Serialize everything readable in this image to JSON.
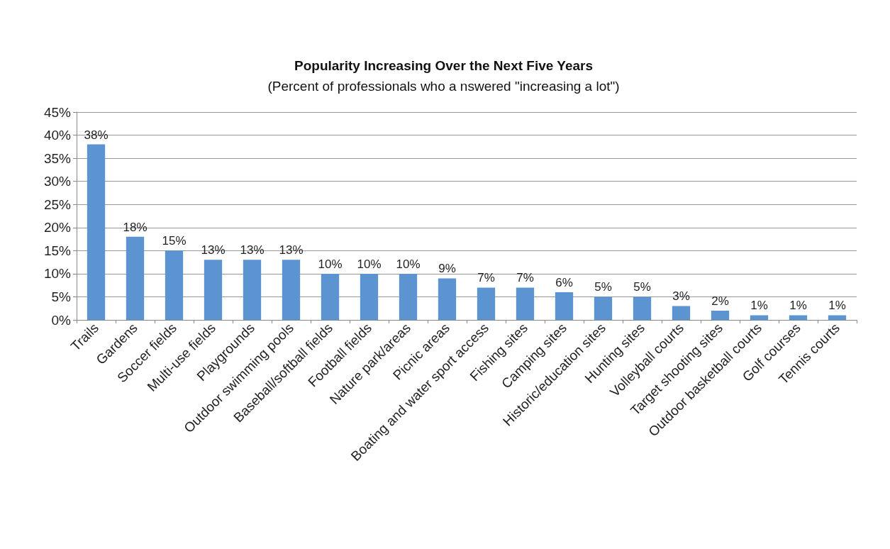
{
  "chart_data": {
    "type": "bar",
    "title": "Popularity Increasing Over the Next Five Years",
    "subtitle": "(Percent of professionals who a nswered \"increasing a lot\")",
    "categories": [
      "Trails",
      "Gardens",
      "Soccer fields",
      "Multi-use fields",
      "Playgrounds",
      "Outdoor swimming pools",
      "Baseball/softball fields",
      "Football fields",
      "Nature park/areas",
      "Picnic areas",
      "Boating and water sport access",
      "Fishing sites",
      "Camping sites",
      "Historic/education sites",
      "Hunting sites",
      "Volleyball courts",
      "Target shooting sites",
      "Outdoor basketball courts",
      "Golf courses",
      "Tennis courts"
    ],
    "values": [
      38,
      18,
      15,
      13,
      13,
      13,
      10,
      10,
      10,
      9,
      7,
      7,
      6,
      5,
      5,
      3,
      2,
      1,
      1,
      1
    ],
    "value_labels": [
      "38%",
      "18%",
      "15%",
      "13%",
      "13%",
      "13%",
      "10%",
      "10%",
      "10%",
      "9%",
      "7%",
      "7%",
      "6%",
      "5%",
      "5%",
      "3%",
      "2%",
      "1%",
      "1%",
      "1%"
    ],
    "color": "#5b94d0",
    "ylim": [
      0,
      45
    ],
    "yticks": [
      {
        "value": 0,
        "label": "0%"
      },
      {
        "value": 5,
        "label": "5%"
      },
      {
        "value": 10,
        "label": "10%"
      },
      {
        "value": 15,
        "label": "15%"
      },
      {
        "value": 20,
        "label": "20%"
      },
      {
        "value": 25,
        "label": "25%"
      },
      {
        "value": 30,
        "label": "30%"
      },
      {
        "value": 35,
        "label": "35%"
      },
      {
        "value": 40,
        "label": "40%"
      },
      {
        "value": 45,
        "label": "45%"
      }
    ],
    "grid": "y"
  }
}
